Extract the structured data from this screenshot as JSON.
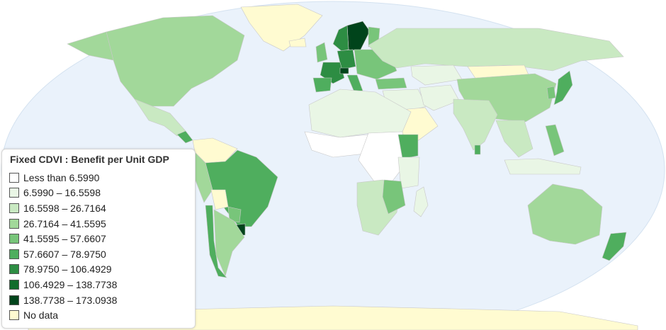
{
  "legend": {
    "title": "Fixed CDVI : Benefit per Unit GDP",
    "items": [
      {
        "label": "Less than 6.5990",
        "color": "#ffffff"
      },
      {
        "label": "6.5990 – 16.5598",
        "color": "#e9f6e5"
      },
      {
        "label": "16.5598 – 26.7164",
        "color": "#c9e9c2"
      },
      {
        "label": "26.7164 – 41.5595",
        "color": "#a2d89a"
      },
      {
        "label": "41.5595 – 57.6607",
        "color": "#78c57a"
      },
      {
        "label": "57.6607 – 78.9750",
        "color": "#4fae5e"
      },
      {
        "label": "78.9750 – 106.4929",
        "color": "#2d8d43"
      },
      {
        "label": "106.4929 – 138.7738",
        "color": "#106c2b"
      },
      {
        "label": "138.7738 – 173.0938",
        "color": "#00441b"
      },
      {
        "label": "No data",
        "color": "#fffbd1"
      }
    ]
  },
  "map": {
    "ocean_color": "#eaf2fb",
    "regions": [
      {
        "id": "greenland",
        "class": "No data"
      },
      {
        "id": "north-america",
        "class": "26.7164 – 41.5595"
      },
      {
        "id": "alaska",
        "class": "26.7164 – 41.5595"
      },
      {
        "id": "central-america",
        "class": "16.5598 – 26.7164"
      },
      {
        "id": "costa-rica",
        "class": "57.6607 – 78.9750"
      },
      {
        "id": "colombia-venezuela",
        "class": "No data"
      },
      {
        "id": "ecuador-peru",
        "class": "26.7164 – 41.5595"
      },
      {
        "id": "brazil",
        "class": "57.6607 – 78.9750"
      },
      {
        "id": "bolivia",
        "class": "No data"
      },
      {
        "id": "paraguay",
        "class": "41.5595 – 57.6607"
      },
      {
        "id": "uruguay",
        "class": "138.7738 – 173.0938"
      },
      {
        "id": "chile",
        "class": "57.6607 – 78.9750"
      },
      {
        "id": "argentina",
        "class": "26.7164 – 41.5595"
      },
      {
        "id": "iceland",
        "class": "No data"
      },
      {
        "id": "uk",
        "class": "41.5595 – 57.6607"
      },
      {
        "id": "sweden",
        "class": "138.7738 – 173.0938"
      },
      {
        "id": "norway",
        "class": "78.9750 – 106.4929"
      },
      {
        "id": "finland",
        "class": "41.5595 – 57.6607"
      },
      {
        "id": "germany",
        "class": "78.9750 – 106.4929"
      },
      {
        "id": "france",
        "class": "78.9750 – 106.4929"
      },
      {
        "id": "switzerland",
        "class": "138.7738 – 173.0938"
      },
      {
        "id": "spain",
        "class": "57.6607 – 78.9750"
      },
      {
        "id": "italy",
        "class": "57.6607 – 78.9750"
      },
      {
        "id": "eastern-europe",
        "class": "41.5595 – 57.6607"
      },
      {
        "id": "turkey",
        "class": "41.5595 – 57.6607"
      },
      {
        "id": "russia",
        "class": "16.5598 – 26.7164"
      },
      {
        "id": "kazakhstan",
        "class": "6.5990 – 16.5598"
      },
      {
        "id": "mongolia",
        "class": "No data"
      },
      {
        "id": "china",
        "class": "26.7164 – 41.5595"
      },
      {
        "id": "korea",
        "class": "41.5595 – 57.6607"
      },
      {
        "id": "japan",
        "class": "57.6607 – 78.9750"
      },
      {
        "id": "middle-east",
        "class": "6.5990 – 16.5598"
      },
      {
        "id": "arabia",
        "class": "No data"
      },
      {
        "id": "iran-afghanistan",
        "class": "6.5990 – 16.5598"
      },
      {
        "id": "india",
        "class": "16.5598 – 26.7164"
      },
      {
        "id": "sri-lanka",
        "class": "57.6607 – 78.9750"
      },
      {
        "id": "southeast-asia",
        "class": "16.5598 – 26.7164"
      },
      {
        "id": "philippines",
        "class": "41.5595 – 57.6607"
      },
      {
        "id": "indonesia",
        "class": "6.5990 – 16.5598"
      },
      {
        "id": "australia",
        "class": "26.7164 – 41.5595"
      },
      {
        "id": "new-zealand",
        "class": "57.6607 – 78.9750"
      },
      {
        "id": "north-africa",
        "class": "6.5990 – 16.5598"
      },
      {
        "id": "west-africa",
        "class": "Less than 6.5990"
      },
      {
        "id": "central-africa",
        "class": "Less than 6.5990"
      },
      {
        "id": "ethiopia",
        "class": "57.6607 – 78.9750"
      },
      {
        "id": "east-africa",
        "class": "6.5990 – 16.5598"
      },
      {
        "id": "southern-africa",
        "class": "16.5598 – 26.7164"
      },
      {
        "id": "malawi-mozambique",
        "class": "41.5595 – 57.6607"
      },
      {
        "id": "madagascar",
        "class": "6.5990 – 16.5598"
      },
      {
        "id": "antarctica",
        "class": "No data"
      }
    ]
  }
}
